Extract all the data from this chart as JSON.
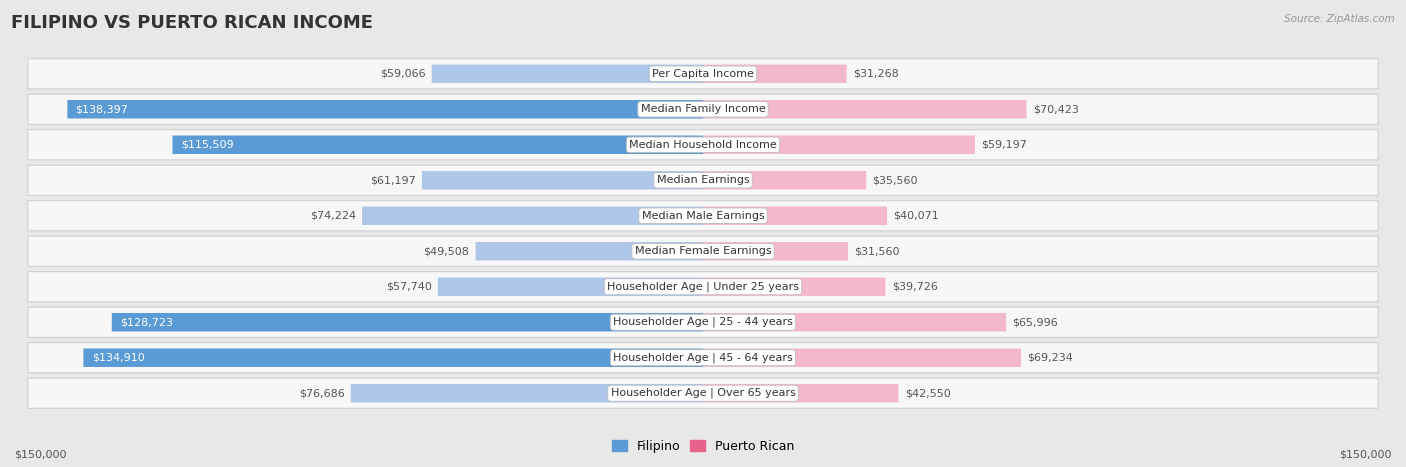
{
  "title": "FILIPINO VS PUERTO RICAN INCOME",
  "source": "Source: ZipAtlas.com",
  "max_value": 150000,
  "categories": [
    "Per Capita Income",
    "Median Family Income",
    "Median Household Income",
    "Median Earnings",
    "Median Male Earnings",
    "Median Female Earnings",
    "Householder Age | Under 25 years",
    "Householder Age | 25 - 44 years",
    "Householder Age | 45 - 64 years",
    "Householder Age | Over 65 years"
  ],
  "filipino_values": [
    59066,
    138397,
    115509,
    61197,
    74224,
    49508,
    57740,
    128723,
    134910,
    76686
  ],
  "puerto_rican_values": [
    31268,
    70423,
    59197,
    35560,
    40071,
    31560,
    39726,
    65996,
    69234,
    42550
  ],
  "filipino_labels": [
    "$59,066",
    "$138,397",
    "$115,509",
    "$61,197",
    "$74,224",
    "$49,508",
    "$57,740",
    "$128,723",
    "$134,910",
    "$76,686"
  ],
  "puerto_rican_labels": [
    "$31,268",
    "$70,423",
    "$59,197",
    "$35,560",
    "$40,071",
    "$31,560",
    "$39,726",
    "$65,996",
    "$69,234",
    "$42,550"
  ],
  "filipino_color_dark": "#5b9bd5",
  "filipino_color_light": "#aec6e8",
  "puerto_rican_color_dark": "#e8638a",
  "puerto_rican_color_light": "#f4b8cc",
  "bg_color": "#e8e8e8",
  "row_bg": "#f7f7f7",
  "row_border": "#d0d0d0",
  "label_dark_threshold": 80000,
  "xlabel_left": "$150,000",
  "xlabel_right": "$150,000",
  "legend_filipino": "Filipino",
  "legend_puerto_rican": "Puerto Rican",
  "title_fontsize": 13,
  "label_fontsize": 8,
  "cat_fontsize": 8
}
